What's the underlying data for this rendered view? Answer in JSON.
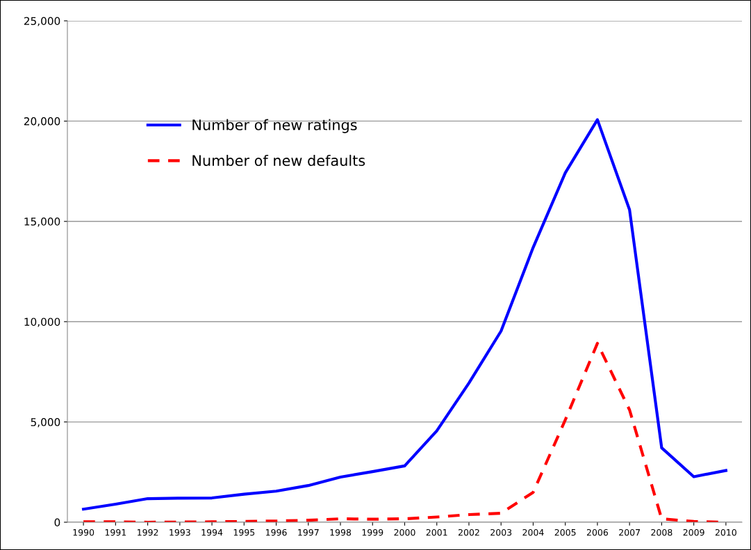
{
  "chart_data": {
    "type": "line",
    "categories": [
      "1990",
      "1991",
      "1992",
      "1993",
      "1994",
      "1995",
      "1996",
      "1997",
      "1998",
      "1999",
      "2000",
      "2001",
      "2002",
      "2003",
      "2004",
      "2005",
      "2006",
      "2007",
      "2008",
      "2009",
      "2010"
    ],
    "series": [
      {
        "name": "Number of new ratings",
        "color": "#0000ff",
        "line_style": "solid",
        "values": [
          650,
          900,
          1175,
          1200,
          1210,
          1400,
          1550,
          1830,
          2250,
          2525,
          2810,
          4560,
          6940,
          9530,
          13700,
          17420,
          20070,
          15580,
          3710,
          2270,
          2580
        ]
      },
      {
        "name": "Number of new defaults",
        "color": "#ff0000",
        "line_style": "dashed",
        "values": [
          20,
          20,
          0,
          10,
          20,
          40,
          60,
          100,
          170,
          150,
          170,
          260,
          380,
          450,
          1490,
          5100,
          8920,
          5600,
          170,
          40,
          0
        ]
      }
    ],
    "ylim": [
      0,
      25000
    ],
    "yticks": [
      {
        "value": 0,
        "label": "0"
      },
      {
        "value": 5000,
        "label": "5,000"
      },
      {
        "value": 10000,
        "label": "10,000"
      },
      {
        "value": 15000,
        "label": "15,000"
      },
      {
        "value": 20000,
        "label": "20,000"
      },
      {
        "value": 25000,
        "label": "25,000"
      }
    ],
    "grid": "y",
    "legend": "top left",
    "marker": "none"
  }
}
